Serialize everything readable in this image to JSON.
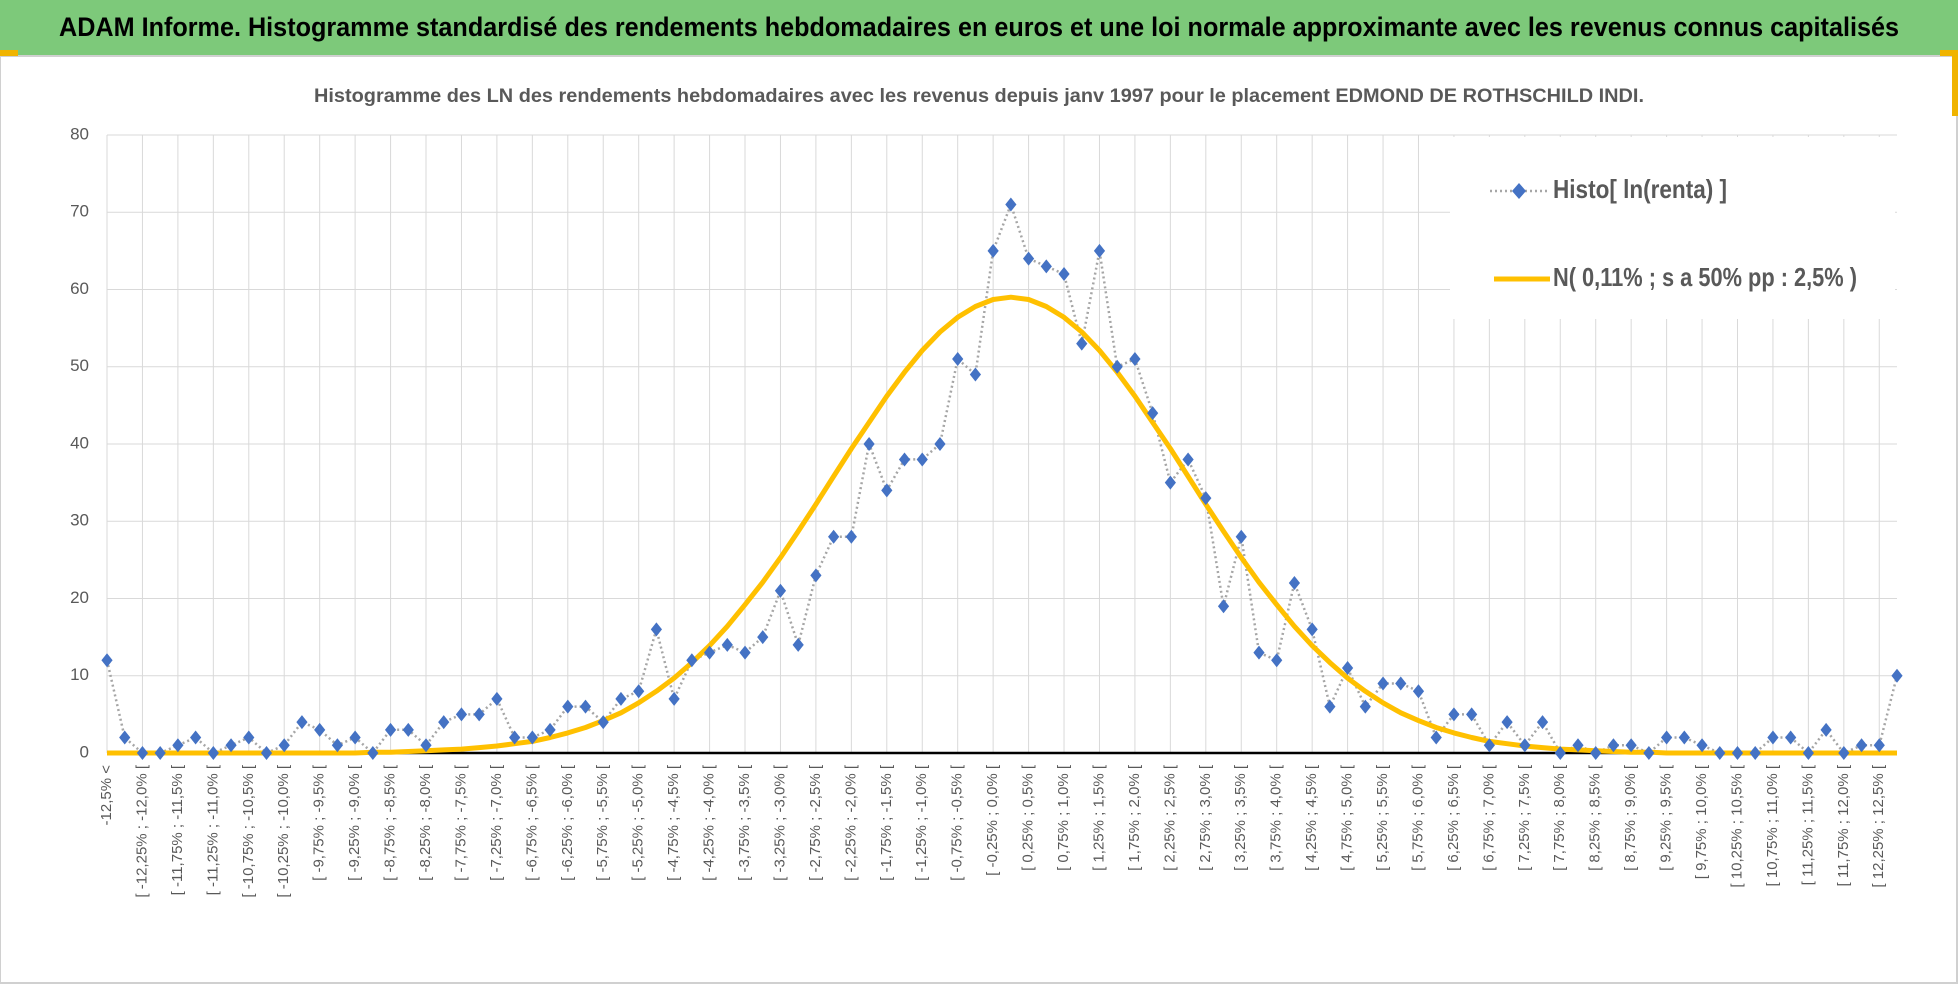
{
  "chart_data": {
    "type": "line",
    "title": "ADAM Informe. Histogramme standardisé des rendements hebdomadaires en euros et une loi normale approximante avec les revenus connus capitalisés",
    "subtitle": "Histogramme des LN des rendements hebdomadaires avec les revenus depuis janv 1997 pour le placement EDMOND DE ROTHSCHILD INDI.",
    "categories": [
      "-12,5% <",
      null,
      "[ -12,25% ; -12,0% [",
      null,
      "[ -11,75% ; -11,5% [",
      null,
      "[ -11,25% ; -11,0% [",
      null,
      "[ -10,75% ; -10,5% [",
      null,
      "[ -10,25% ; -10,0% [",
      null,
      "[ -9,75% ; -9,5% [",
      null,
      "[ -9,25% ; -9,0% [",
      null,
      "[ -8,75% ; -8,5% [",
      null,
      "[ -8,25% ; -8,0% [",
      null,
      "[ -7,75% ; -7,5% [",
      null,
      "[ -7,25% ; -7,0% [",
      null,
      "[ -6,75% ; -6,5% [",
      null,
      "[ -6,25% ; -6,0% [",
      null,
      "[ -5,75% ; -5,5% [",
      null,
      "[ -5,25% ; -5,0% [",
      null,
      "[ -4,75% ; -4,5% [",
      null,
      "[ -4,25% ; -4,0% [",
      null,
      "[ -3,75% ; -3,5% [",
      null,
      "[ -3,25% ; -3,0% [",
      null,
      "[ -2,75% ; -2,5% [",
      null,
      "[ -2,25% ; -2,0% [",
      null,
      "[ -1,75% ; -1,5% [",
      null,
      "[ -1,25% ; -1,0% [",
      null,
      "[ -0,75% ; -0,5% [",
      null,
      "[ -0,25% ; 0,0% [",
      null,
      "[ 0,25% ; 0,5% [",
      null,
      "[ 0,75% ; 1,0% [",
      null,
      "[ 1,25% ; 1,5% [",
      null,
      "[ 1,75% ; 2,0% [",
      null,
      "[ 2,25% ; 2,5% [",
      null,
      "[ 2,75% ; 3,0% [",
      null,
      "[ 3,25% ; 3,5% [",
      null,
      "[ 3,75% ; 4,0% [",
      null,
      "[ 4,25% ; 4,5% [",
      null,
      "[ 4,75% ; 5,0% [",
      null,
      "[ 5,25% ; 5,5% [",
      null,
      "[ 5,75% ; 6,0% [",
      null,
      "[ 6,25% ; 6,5% [",
      null,
      "[ 6,75% ; 7,0% [",
      null,
      "[ 7,25% ; 7,5% [",
      null,
      "[ 7,75% ; 8,0% [",
      null,
      "[ 8,25% ; 8,5% [",
      null,
      "[ 8,75% ; 9,0% [",
      null,
      "[ 9,25% ; 9,5% [",
      null,
      "[ 9,75% ; 10,0% [",
      null,
      "[ 10,25% ; 10,5% [",
      null,
      "[ 10,75% ; 11,0% [",
      null,
      "[ 11,25% ; 11,5% [",
      null,
      "[ 11,75% ; 12,0% [",
      null,
      "[ 12,25% ; 12,5% [",
      null
    ],
    "series": [
      {
        "name": "Histo[ ln(renta) ]",
        "color": "#4472c4",
        "line_color": "#a6a6a6",
        "values": [
          12,
          2,
          0,
          0,
          1,
          2,
          0,
          1,
          2,
          0,
          1,
          4,
          3,
          1,
          2,
          0,
          3,
          3,
          1,
          4,
          5,
          5,
          7,
          2,
          2,
          3,
          6,
          6,
          4,
          7,
          8,
          16,
          7,
          12,
          13,
          14,
          13,
          15,
          21,
          14,
          23,
          28,
          28,
          40,
          34,
          38,
          38,
          40,
          51,
          49,
          65,
          71,
          64,
          63,
          62,
          53,
          65,
          50,
          51,
          44,
          35,
          38,
          33,
          19,
          28,
          13,
          12,
          22,
          16,
          6,
          11,
          6,
          9,
          9,
          8,
          2,
          5,
          5,
          1,
          4,
          1,
          4,
          0,
          1,
          0,
          1,
          1,
          0,
          2,
          2,
          1,
          0,
          0,
          0,
          2,
          2,
          0,
          3,
          0,
          1,
          1,
          10
        ]
      },
      {
        "name": "N( 0,11% ; s a 50% pp : 2,5% )",
        "color": "#ffc000",
        "values": [
          0,
          0,
          0,
          0,
          0,
          0,
          0,
          0,
          0,
          0,
          0,
          0,
          0,
          0,
          0,
          0.1,
          0.1,
          0.2,
          0.3,
          0.4,
          0.5,
          0.7,
          0.9,
          1.2,
          1.5,
          2.0,
          2.6,
          3.3,
          4.2,
          5.2,
          6.5,
          8.0,
          9.7,
          11.7,
          13.9,
          16.4,
          19.2,
          22.1,
          25.3,
          28.7,
          32.2,
          35.8,
          39.4,
          42.8,
          46.2,
          49.3,
          52.1,
          54.5,
          56.4,
          57.8,
          58.7,
          59.0,
          58.7,
          57.8,
          56.4,
          54.5,
          52.1,
          49.3,
          46.2,
          42.8,
          39.4,
          35.8,
          32.2,
          28.7,
          25.3,
          22.1,
          19.2,
          16.4,
          13.9,
          11.7,
          9.7,
          8.0,
          6.5,
          5.2,
          4.2,
          3.3,
          2.6,
          2.0,
          1.5,
          1.2,
          0.9,
          0.7,
          0.5,
          0.4,
          0.3,
          0.2,
          0.1,
          0.1,
          0,
          0,
          0,
          0,
          0,
          0,
          0,
          0,
          0,
          0,
          0,
          0,
          0,
          0
        ]
      }
    ],
    "ylim": [
      0,
      80
    ],
    "yticks": [
      0,
      10,
      20,
      30,
      40,
      50,
      60,
      70,
      80
    ],
    "grid": true,
    "legend": "upper right"
  }
}
